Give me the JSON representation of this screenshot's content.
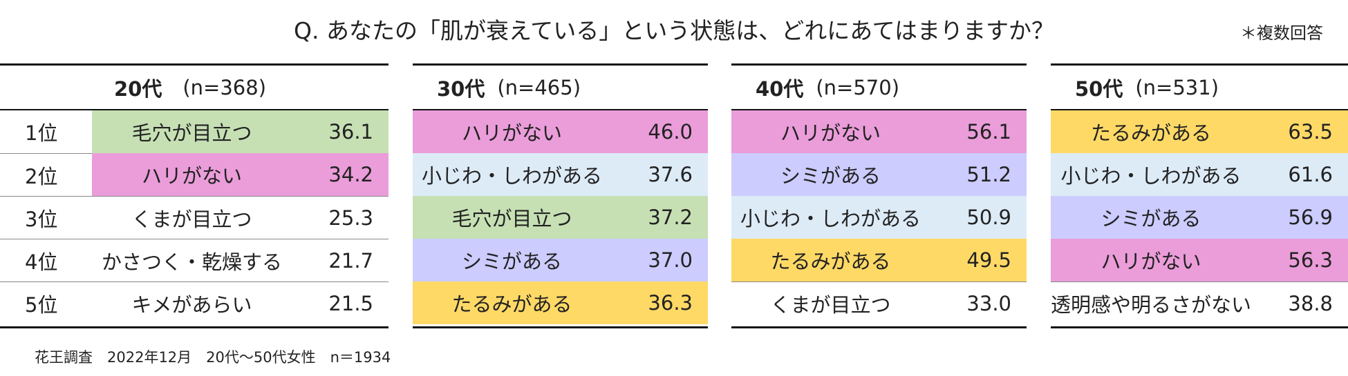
{
  "header": {
    "title": "Q. あなたの「肌が衰えている」という状態は、どれにあてはまりますか？",
    "note": "＊複数回答"
  },
  "ranks": [
    "1位",
    "2位",
    "3位",
    "4位",
    "5位"
  ],
  "tables": [
    {
      "group": "20代",
      "n": "(n=368)",
      "rows": [
        {
          "item": "毛穴が目立つ",
          "value": "36.1",
          "color": "#c6e0b4"
        },
        {
          "item": "ハリがない",
          "value": "34.2",
          "color": "#ea9dd9"
        },
        {
          "item": "くまが目立つ",
          "value": "25.3"
        },
        {
          "item": "かさつく・乾燥する",
          "value": "21.7"
        },
        {
          "item": "キメがあらい",
          "value": "21.5"
        }
      ]
    },
    {
      "group": "30代",
      "n": "(n=465)",
      "rows": [
        {
          "item": "ハリがない",
          "value": "46.0",
          "color": "#ea9dd9"
        },
        {
          "item": "小じわ・しわがある",
          "value": "37.6",
          "color": "#ddebf7"
        },
        {
          "item": "毛穴が目立つ",
          "value": "37.2",
          "color": "#c6e0b4"
        },
        {
          "item": "シミがある",
          "value": "37.0",
          "color": "#ccccff"
        },
        {
          "item": "たるみがある",
          "value": "36.3",
          "color": "#ffd966"
        }
      ]
    },
    {
      "group": "40代",
      "n": "(n=570)",
      "rows": [
        {
          "item": "ハリがない",
          "value": "56.1",
          "color": "#ea9dd9"
        },
        {
          "item": "シミがある",
          "value": "51.2",
          "color": "#ccccff"
        },
        {
          "item": "小じわ・しわがある",
          "value": "50.9",
          "color": "#ddebf7"
        },
        {
          "item": "たるみがある",
          "value": "49.5",
          "color": "#ffd966"
        },
        {
          "item": "くまが目立つ",
          "value": "33.0"
        }
      ]
    },
    {
      "group": "50代",
      "n": "(n=531)",
      "rows": [
        {
          "item": "たるみがある",
          "value": "63.5",
          "color": "#ffd966"
        },
        {
          "item": "小じわ・しわがある",
          "value": "61.6",
          "color": "#ddebf7"
        },
        {
          "item": "シミがある",
          "value": "56.9",
          "color": "#ccccff"
        },
        {
          "item": "ハリがない",
          "value": "56.3",
          "color": "#ea9dd9"
        },
        {
          "item": "透明感や明るさがない",
          "value": "38.8"
        }
      ]
    }
  ],
  "footer": "花王調査　2022年12月　20代～50代女性　n＝1934"
}
